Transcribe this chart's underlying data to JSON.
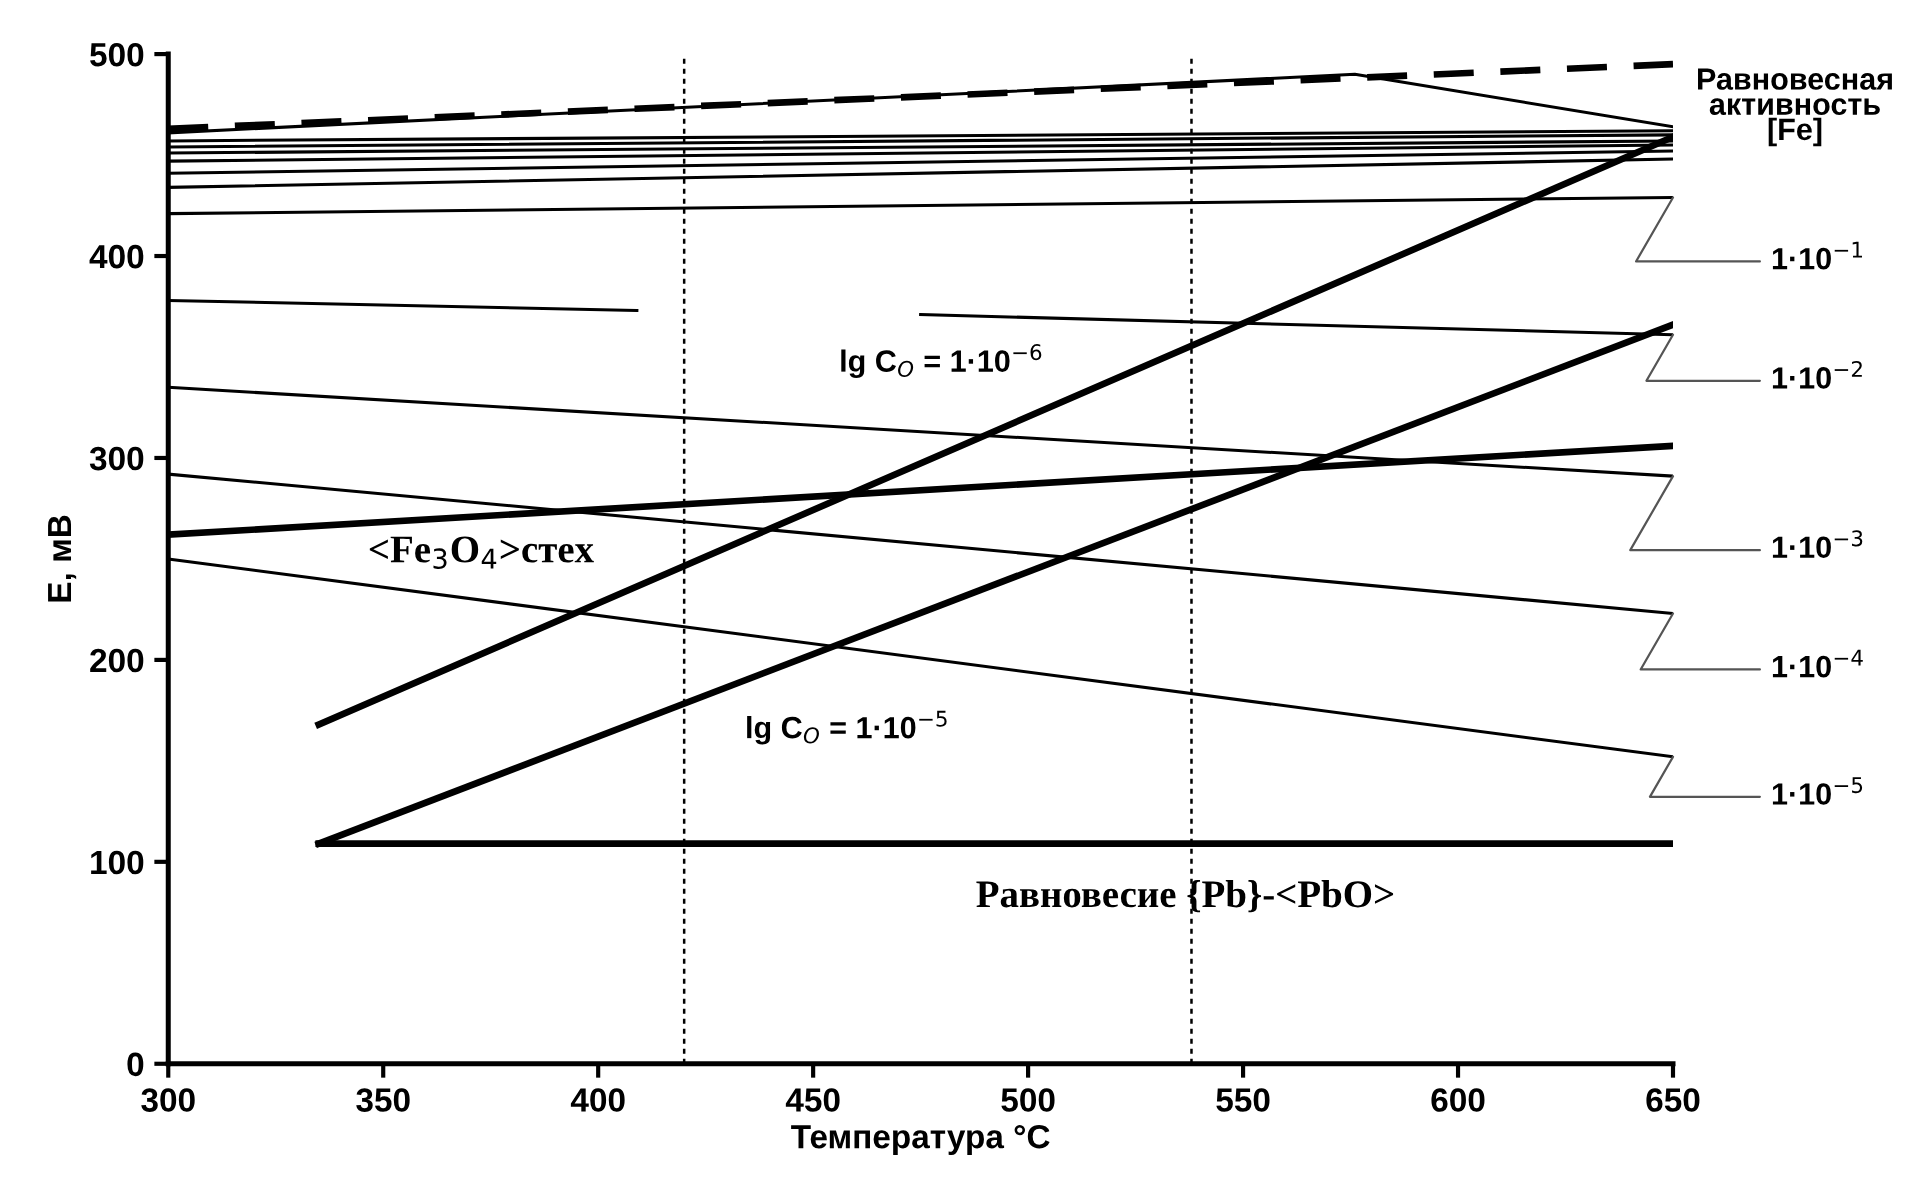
{
  "chart_data": {
    "type": "line",
    "xlabel": "Температура °C",
    "ylabel": "E, мВ",
    "xlim": [
      300,
      650
    ],
    "xticks": [
      300,
      350,
      400,
      450,
      500,
      550,
      600,
      650
    ],
    "ylim": [
      0,
      500
    ],
    "yticks": [
      0,
      100,
      200,
      300,
      400,
      500
    ],
    "grid": false,
    "legend": false,
    "marker": "none",
    "series": [
      {
        "color": "#000000",
        "line_style": "dashed",
        "x": [
          300,
          650
        ],
        "values": [
          463,
          495
        ]
      },
      {
        "color": "#000000",
        "x": [
          300,
          576,
          650
        ],
        "values": [
          461,
          490,
          464
        ]
      },
      {
        "color": "#000000",
        "x": [
          300,
          650
        ],
        "values": [
          457,
          462
        ]
      },
      {
        "color": "#000000",
        "x": [
          300,
          650
        ],
        "values": [
          454,
          460
        ]
      },
      {
        "color": "#000000",
        "x": [
          300,
          650
        ],
        "values": [
          451,
          457
        ]
      },
      {
        "color": "#000000",
        "x": [
          300,
          650
        ],
        "values": [
          447,
          455
        ]
      },
      {
        "color": "#000000",
        "x": [
          300,
          650
        ],
        "values": [
          441,
          452
        ]
      },
      {
        "color": "#000000",
        "x": [
          300,
          650
        ],
        "values": [
          434,
          448
        ]
      },
      {
        "name": "1·10$^{−1}$",
        "color": "#000000",
        "x": [
          300,
          650
        ],
        "values": [
          421,
          429
        ]
      },
      {
        "name": "1·10$^{−2}$",
        "color": "#000000",
        "x": [
          300,
          409,
          442,
          475,
          650
        ],
        "values": [
          378,
          373,
          null,
          371,
          361
        ]
      },
      {
        "name": "1·10$^{−3}$",
        "color": "#000000",
        "x": [
          300,
          650
        ],
        "values": [
          335,
          291
        ]
      },
      {
        "name": "1·10$^{−4}$",
        "color": "#000000",
        "x": [
          300,
          650
        ],
        "values": [
          292,
          223
        ]
      },
      {
        "name": "1·10$^{−5}$",
        "color": "#000000",
        "x": [
          300,
          650
        ],
        "values": [
          250,
          152
        ]
      },
      {
        "name": "<Fe$_{3}$O$_{4}$>стех",
        "color": "#000000",
        "x": [
          300,
          650
        ],
        "values": [
          262,
          306
        ]
      },
      {
        "name": "lg C$_{O}$ = 1·10$^{−6}$",
        "color": "#000000",
        "x": [
          335,
          650
        ],
        "values": [
          168,
          459
        ]
      },
      {
        "name": "lg C$_{O}$ = 1·10$^{−5}$",
        "color": "#000000",
        "x": [
          335,
          650
        ],
        "values": [
          109,
          366
        ]
      },
      {
        "name": "Равновесие {Pb}-<PbO>",
        "color": "#000000",
        "x": [
          335,
          650
        ],
        "values": [
          109,
          109
        ]
      }
    ],
    "ref_lines": [
      {
        "axis": "x",
        "value": 420,
        "color": "#000000",
        "line_style": "dotted"
      },
      {
        "axis": "x",
        "value": 538,
        "color": "#000000",
        "line_style": "dotted"
      }
    ],
    "annotations": [
      {
        "text": "Равновесная\nактивность\n[Fe]",
        "x": 650,
        "y": 462
      }
    ]
  }
}
